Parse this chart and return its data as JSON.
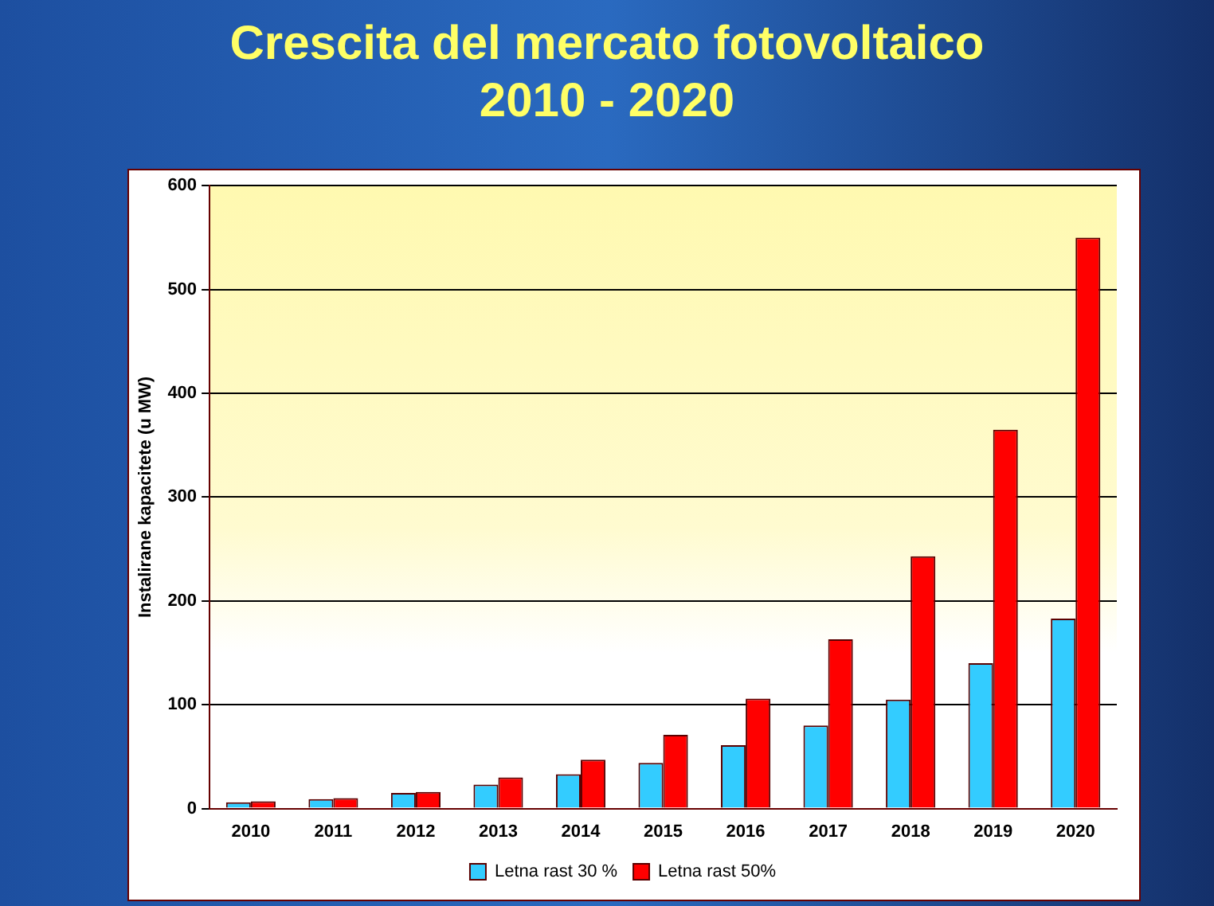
{
  "chart_data": {
    "type": "bar",
    "title": "Crescita del mercato fotovoltaico\n2010 - 2020",
    "ylabel": "Instalirane kapacitete (u MW)",
    "categories": [
      "2010",
      "2011",
      "2012",
      "2013",
      "2014",
      "2015",
      "2016",
      "2017",
      "2018",
      "2019",
      "2020"
    ],
    "series": [
      {
        "name": "Letna rast 30 %",
        "color": "#33ccff",
        "values": [
          6,
          9,
          15,
          23,
          33,
          44,
          61,
          80,
          105,
          140,
          183
        ]
      },
      {
        "name": "Letna rast 50%",
        "color": "#ff0000",
        "values": [
          7,
          10,
          16,
          30,
          47,
          71,
          106,
          163,
          243,
          365,
          550
        ]
      }
    ],
    "ylim": [
      0,
      600
    ],
    "yticks": [
      0,
      100,
      200,
      300,
      400,
      500,
      600
    ],
    "grid": "y",
    "legend": "bottom"
  }
}
